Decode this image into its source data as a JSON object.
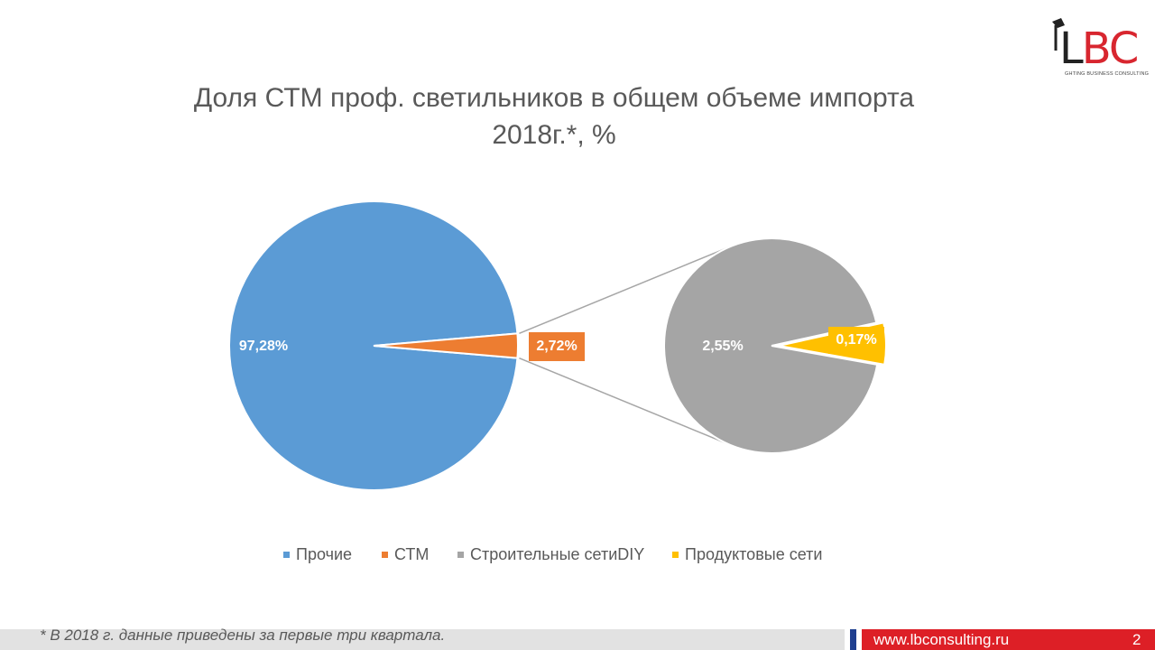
{
  "logo": {
    "letter_l": "L",
    "letters_bc": "BC",
    "tagline": "GHTING BUSINESS CONSULTING",
    "icon": "desk-lamp-icon"
  },
  "title": {
    "line1": "Доля СТМ проф. светильников в общем объеме импорта",
    "line2": "2018г.*, %"
  },
  "chart_data": {
    "type": "pie",
    "subtype": "pie-of-pie",
    "title": "Доля СТМ проф. светильников в общем объеме импорта 2018г.*, %",
    "main_pie": [
      {
        "name": "Прочие",
        "value": 97.28,
        "label": "97,28%",
        "color": "#5b9bd5"
      },
      {
        "name": "СТМ",
        "value": 2.72,
        "label": "2,72%",
        "color": "#ed7d31"
      }
    ],
    "secondary_pie": [
      {
        "name": "Строительные сети DIY",
        "value": 2.55,
        "label": "2,55%",
        "color": "#a5a5a5"
      },
      {
        "name": "Продуктовые сети",
        "value": 0.17,
        "label": "0,17%",
        "color": "#ffc000"
      }
    ],
    "legend_position": "bottom",
    "legend": [
      {
        "name": "Прочие",
        "color": "#5b9bd5"
      },
      {
        "name": "СТМ",
        "color": "#ed7d31"
      },
      {
        "name": "Строительные сетиDIY",
        "color": "#a5a5a5"
      },
      {
        "name": "Продуктовые сети",
        "color": "#ffc000"
      }
    ]
  },
  "footer": {
    "note": "* В 2018 г. данные приведены за первые три квартала.",
    "url": "www.lbconsulting.ru",
    "page": "2"
  }
}
